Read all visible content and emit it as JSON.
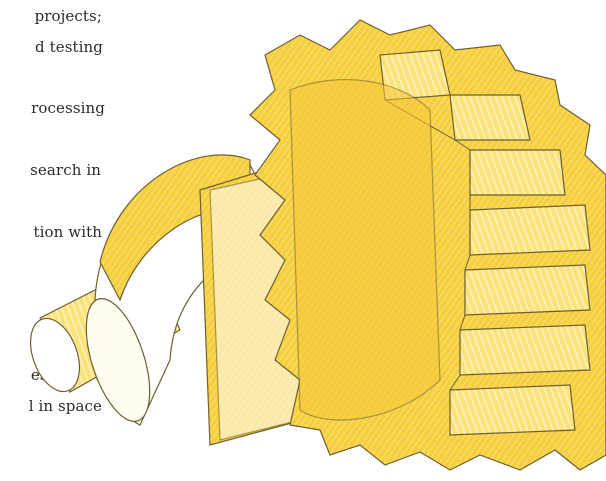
{
  "text_lines": [
    "projects;",
    "d testing",
    "rocessing",
    "search in",
    "tion with",
    "es major",
    "l in space"
  ],
  "illustration": {
    "subject": "gear-icon",
    "stroke_color": "#7a6a3a",
    "fill_color": "#f5c518"
  }
}
